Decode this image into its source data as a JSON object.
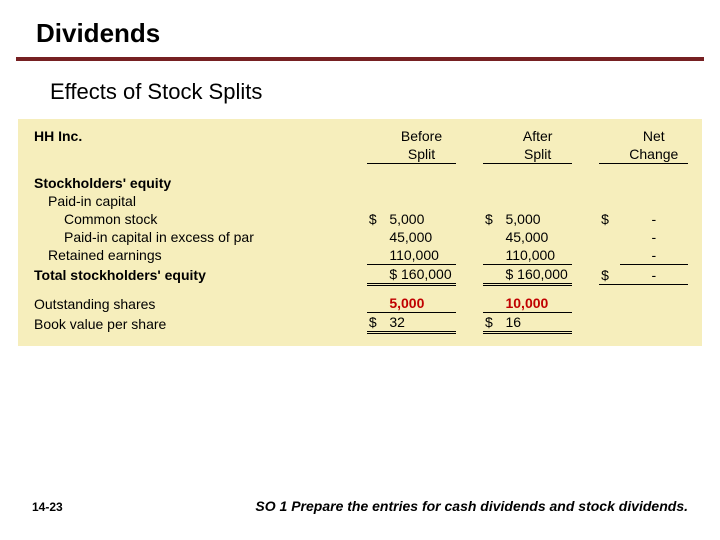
{
  "title": "Dividends",
  "subtitle": "Effects of Stock Splits",
  "company": "HH Inc.",
  "headers": {
    "before1": "Before",
    "before2": "Split",
    "after1": "After",
    "after2": "Split",
    "net1": "Net",
    "net2": "Change"
  },
  "section": "Stockholders' equity",
  "rows": {
    "paidin": {
      "label": "Paid-in capital"
    },
    "common": {
      "label": "Common stock",
      "before": "5,000",
      "after": "5,000",
      "net": "-"
    },
    "excess": {
      "label": "Paid-in capital in excess of par",
      "before": "45,000",
      "after": "45,000",
      "net": "-"
    },
    "retained": {
      "label": "Retained earnings",
      "before": "110,000",
      "after": "110,000",
      "net": "-"
    },
    "total": {
      "label": "Total stockholders' equity",
      "before": "$ 160,000",
      "after": "$ 160,000",
      "net": "-"
    },
    "shares": {
      "label": "Outstanding shares",
      "before": "5,000",
      "after": "10,000"
    },
    "bvps": {
      "label": "Book value per share",
      "before": "32",
      "after": "16"
    }
  },
  "currency": "$",
  "footer": {
    "page": "14-23",
    "note": "SO 1  Prepare the entries for cash dividends and stock dividends."
  },
  "colors": {
    "rule": "#762022",
    "table_bg": "#f6eebc",
    "highlight": "#c00000"
  }
}
